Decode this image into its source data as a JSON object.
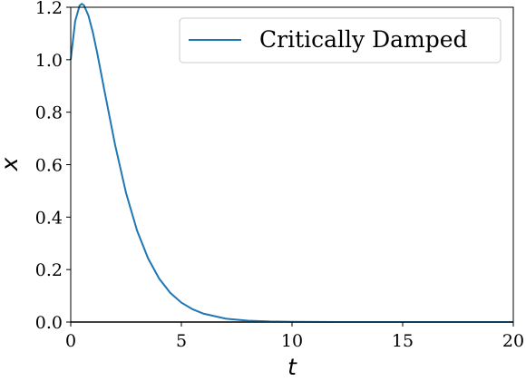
{
  "chart_data": {
    "type": "line",
    "xlabel": "t",
    "ylabel": "x",
    "xlim": [
      0,
      20
    ],
    "ylim": [
      0,
      1.2
    ],
    "x_ticks": [
      0,
      5,
      10,
      15,
      20
    ],
    "x_tick_labels": [
      "0",
      "5",
      "10",
      "15",
      "20"
    ],
    "y_ticks": [
      0.0,
      0.2,
      0.4,
      0.6,
      0.8,
      1.0,
      1.2
    ],
    "y_tick_labels": [
      "0.0",
      "0.2",
      "0.4",
      "0.6",
      "0.8",
      "1.0",
      "1.2"
    ],
    "grid": false,
    "legend_position": "top-right",
    "series": [
      {
        "name": "Critically Damped",
        "color": "#1f77b4",
        "x": [
          0,
          0.2,
          0.4,
          0.5,
          0.6,
          0.8,
          1.0,
          1.2,
          1.5,
          2.0,
          2.5,
          3.0,
          3.5,
          4.0,
          4.5,
          5.0,
          5.5,
          6.0,
          7.0,
          8.0,
          9.0,
          10.0,
          12.0,
          15.0,
          20.0
        ],
        "y": [
          1.0,
          1.147,
          1.206,
          1.213,
          1.207,
          1.168,
          1.104,
          1.024,
          0.892,
          0.677,
          0.492,
          0.348,
          0.242,
          0.165,
          0.111,
          0.074,
          0.049,
          0.032,
          0.013,
          0.005,
          0.002,
          0.001,
          0.0,
          0.0,
          0.0
        ]
      }
    ]
  }
}
